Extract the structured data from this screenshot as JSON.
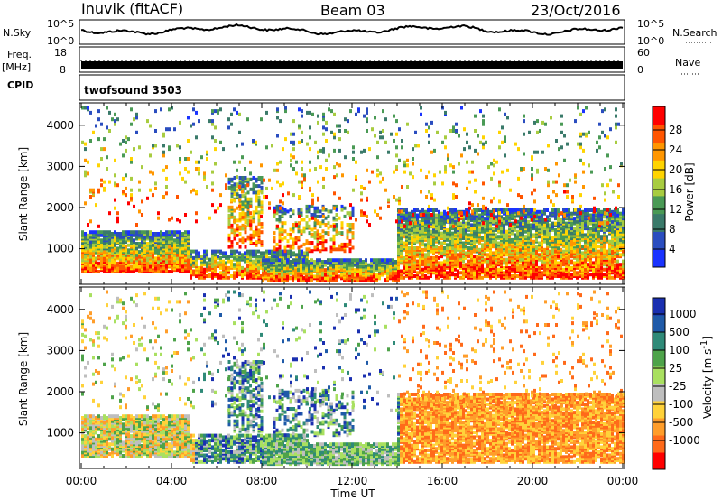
{
  "header": {
    "station": "Inuvik (fitACF)",
    "beam": "Beam 03",
    "date": "23/Oct/2016"
  },
  "panels": {
    "nsky_label": "N.Sky",
    "nsky_ticks": [
      "10^5",
      "10^0"
    ],
    "nsearch_label": "N.Search",
    "freq_label": "Freq.",
    "freq_unit": "[MHz]",
    "freq_ticks": [
      "18",
      "8"
    ],
    "nave_label": "Nave",
    "nave_ticks": [
      "60",
      "0"
    ],
    "cpid_label": "CPID",
    "cpid_value": "twofsound 3503"
  },
  "colors": {
    "power_scale": [
      "#1a33ff",
      "#2a4dbf",
      "#3a7a6a",
      "#4a9a55",
      "#a8cc40",
      "#ffd400",
      "#ff9600",
      "#ff5500",
      "#ff0000"
    ],
    "velocity_scale": [
      "#1a2fb0",
      "#1f5aa8",
      "#2f8a78",
      "#4ea34a",
      "#a9e060",
      "#bebebe",
      "#ffd23a",
      "#ff9d2a",
      "#ff6a1a",
      "#ff0000"
    ]
  },
  "chart_data": [
    {
      "type": "heatmap",
      "name": "power",
      "xlabel": "Time UT",
      "ylabel": "Slant Range [km]",
      "x_ticks": [
        "00:00",
        "04:00",
        "08:00",
        "12:00",
        "16:00",
        "20:00",
        "00:00"
      ],
      "y_ticks": [
        "1000",
        "2000",
        "3000",
        "4000"
      ],
      "xlim": [
        0,
        24
      ],
      "ylim": [
        180,
        4500
      ],
      "colorbar_label": "Power [dB]",
      "colorbar_ticks": [
        "4",
        "8",
        "12",
        "16",
        "20",
        "24",
        "28"
      ],
      "colorbar_range": [
        0,
        30
      ]
    },
    {
      "type": "heatmap",
      "name": "velocity",
      "xlabel": "Time UT",
      "ylabel": "Slant Range [km]",
      "x_ticks": [
        "00:00",
        "04:00",
        "08:00",
        "12:00",
        "16:00",
        "20:00",
        "00:00"
      ],
      "y_ticks": [
        "1000",
        "2000",
        "3000",
        "4000"
      ],
      "xlim": [
        0,
        24
      ],
      "ylim": [
        180,
        4500
      ],
      "colorbar_label": "Velocity [m s",
      "colorbar_label_sup": "-1",
      "colorbar_label_end": "]",
      "colorbar_ticks": [
        "1000",
        "500",
        "100",
        "25",
        "-25",
        "-100",
        "-500",
        "-1000"
      ]
    }
  ]
}
